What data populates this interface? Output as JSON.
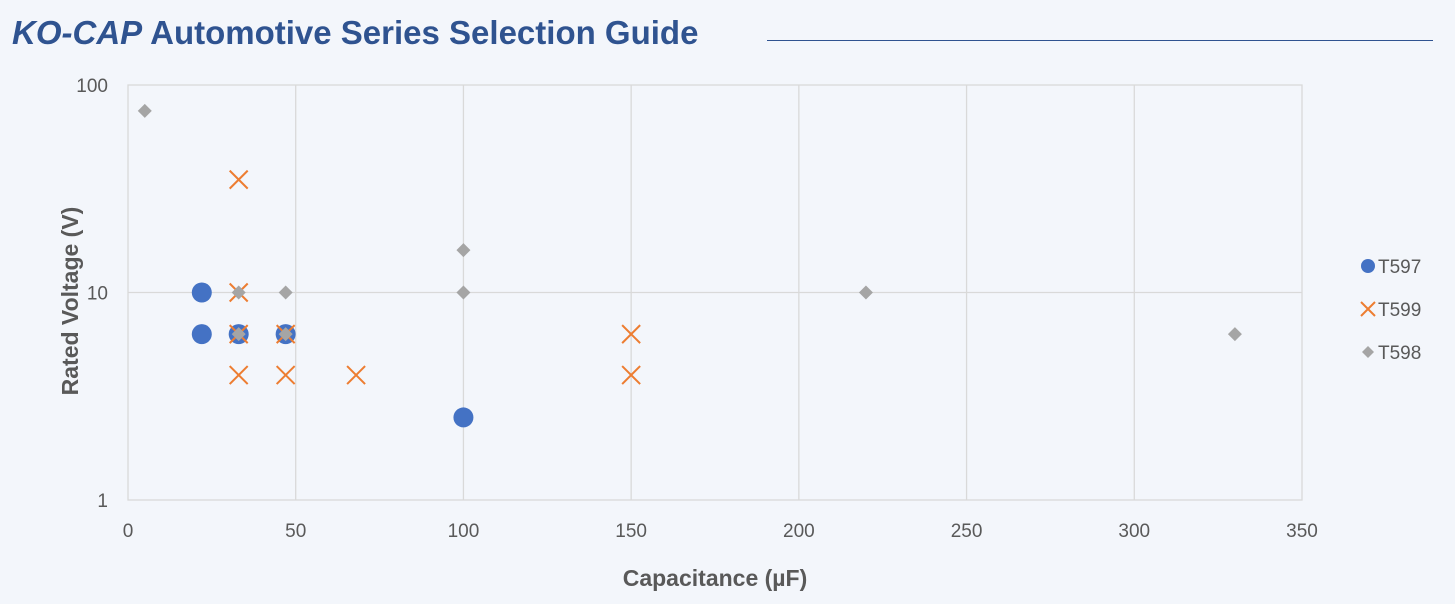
{
  "header": {
    "brand": "KO-CAP",
    "title_rest": "Automotive Series Selection Guide"
  },
  "chart_data": {
    "type": "scatter",
    "xlabel": "Capacitance (µF)",
    "ylabel": "Rated Voltage (V)",
    "xlim": [
      0,
      350
    ],
    "ylim": [
      1,
      100
    ],
    "yscale": "log",
    "x_ticks": [
      0,
      50,
      100,
      150,
      200,
      250,
      300,
      350
    ],
    "y_ticks": [
      1,
      10,
      100
    ],
    "grid": true,
    "legend_position": "right",
    "series": [
      {
        "name": "T597",
        "marker": "circle",
        "color": "#4472c4",
        "points": [
          [
            22,
            10
          ],
          [
            22,
            6.3
          ],
          [
            33,
            6.3
          ],
          [
            47,
            6.3
          ],
          [
            100,
            2.5
          ]
        ]
      },
      {
        "name": "T599",
        "marker": "x",
        "color": "#ed7d31",
        "points": [
          [
            33,
            35
          ],
          [
            33,
            10
          ],
          [
            33,
            6.3
          ],
          [
            47,
            6.3
          ],
          [
            33,
            4
          ],
          [
            47,
            4
          ],
          [
            68,
            4
          ],
          [
            150,
            6.3
          ],
          [
            150,
            4
          ]
        ]
      },
      {
        "name": "T598",
        "marker": "diamond",
        "color": "#a5a5a5",
        "points": [
          [
            5,
            75
          ],
          [
            33,
            10
          ],
          [
            47,
            10
          ],
          [
            33,
            6.3
          ],
          [
            47,
            6.3
          ],
          [
            100,
            16
          ],
          [
            100,
            10
          ],
          [
            220,
            10
          ],
          [
            330,
            6.3
          ]
        ]
      }
    ]
  }
}
